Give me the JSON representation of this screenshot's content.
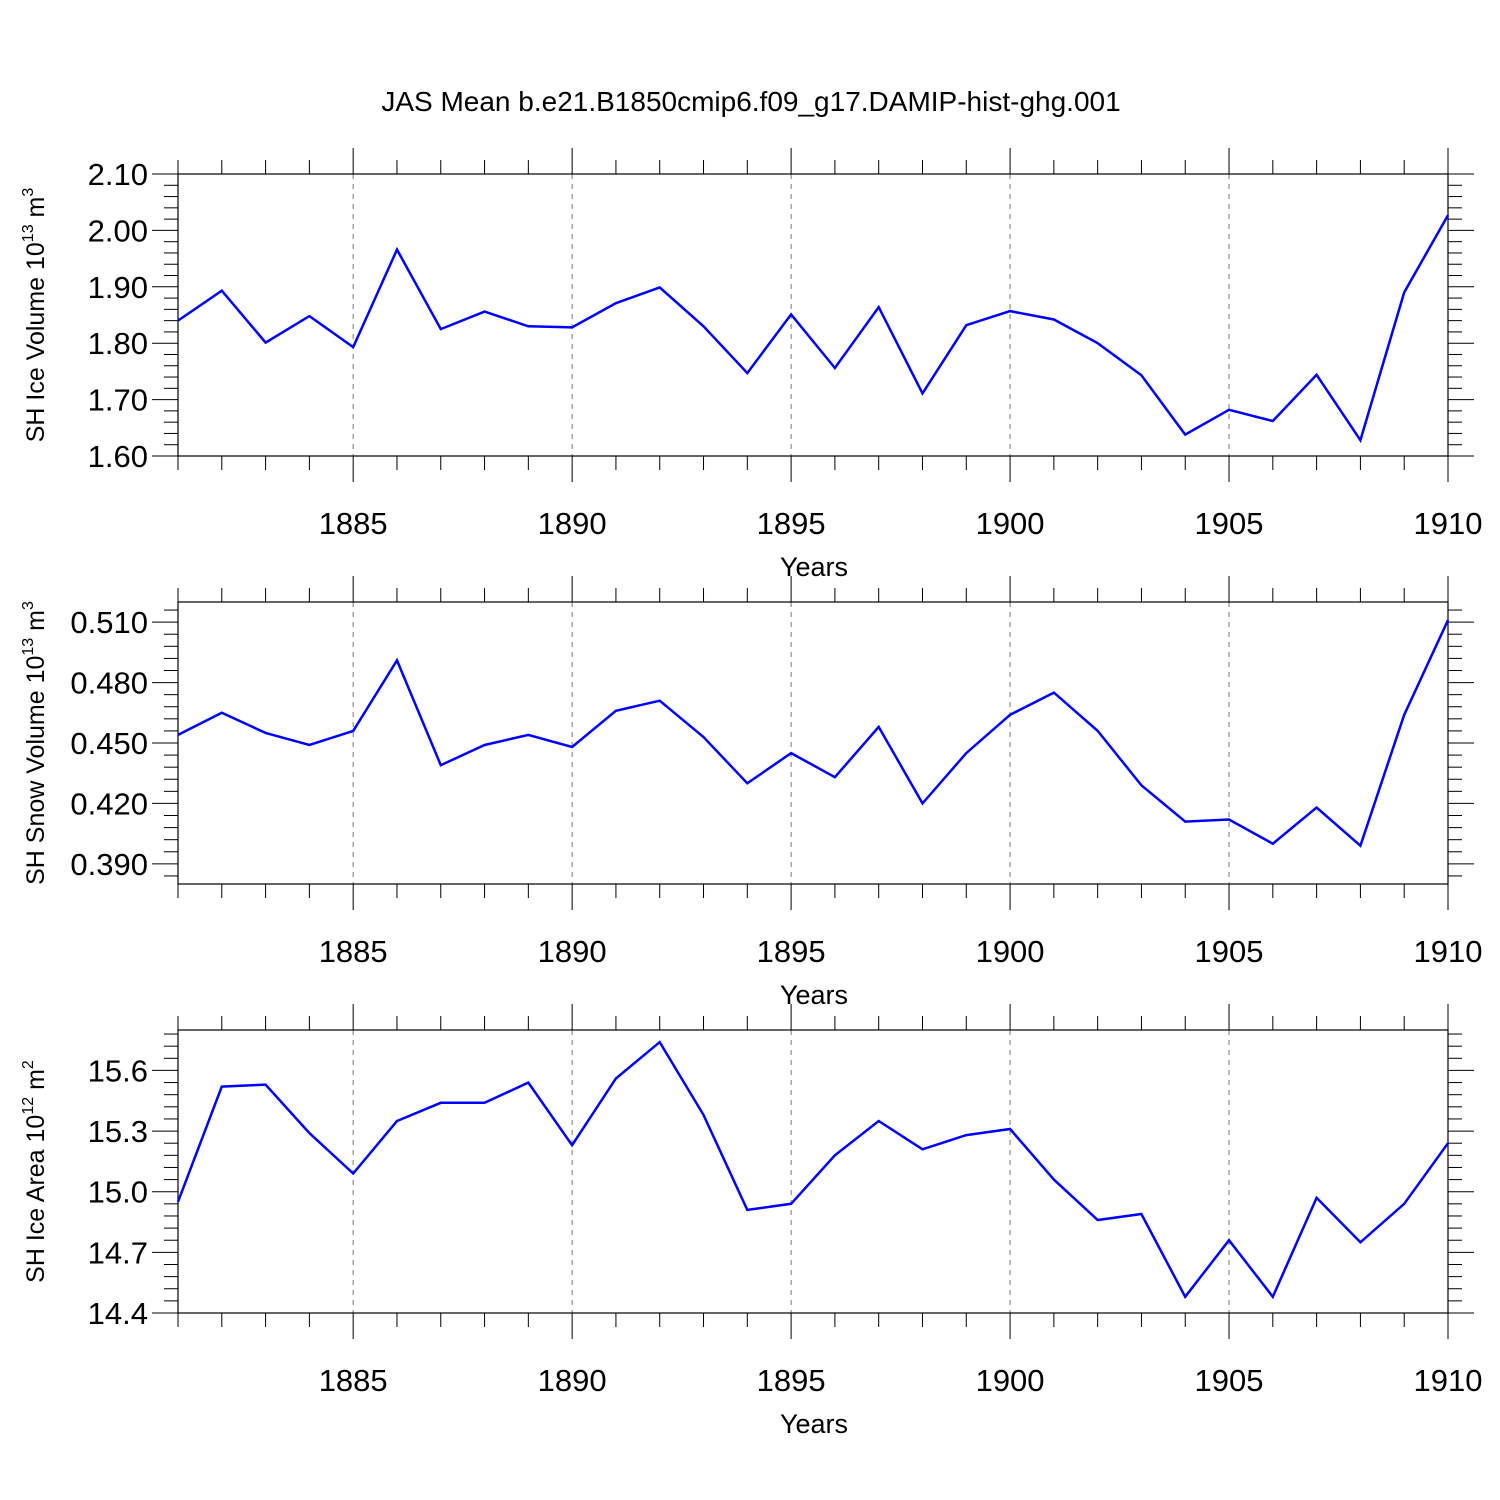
{
  "figure": {
    "title": "JAS Mean b.e21.B1850cmip6.f09_g17.DAMIP-hist-ghg.001"
  },
  "chart_data": [
    {
      "type": "line",
      "title": "JAS Mean b.e21.B1850cmip6.f09_g17.DAMIP-hist-ghg.001",
      "xlabel": "Years",
      "ylabel": "SH Ice Volume 10",
      "ylabel_exp": "13",
      "ylabel_unit": "m",
      "ylabel_unit_exp": "3",
      "xlim": [
        1881,
        1910
      ],
      "ylim": [
        1.6,
        2.1
      ],
      "x_ticks": [
        1885,
        1890,
        1895,
        1900,
        1905,
        1910
      ],
      "y_ticks": [
        1.6,
        1.7,
        1.8,
        1.9,
        2.0,
        2.1
      ],
      "y_tick_decimals": 2,
      "x_grid": true,
      "line_color": "#0000ff",
      "x": [
        1881,
        1882,
        1883,
        1884,
        1885,
        1886,
        1887,
        1888,
        1889,
        1890,
        1891,
        1892,
        1893,
        1894,
        1895,
        1896,
        1897,
        1898,
        1899,
        1900,
        1901,
        1902,
        1903,
        1904,
        1905,
        1906,
        1907,
        1908,
        1909,
        1910
      ],
      "values": [
        1.84,
        1.893,
        1.801,
        1.848,
        1.793,
        1.966,
        1.825,
        1.856,
        1.83,
        1.828,
        1.871,
        1.899,
        1.83,
        1.747,
        1.851,
        1.756,
        1.864,
        1.711,
        1.832,
        1.857,
        1.842,
        1.8,
        1.743,
        1.638,
        1.682,
        1.662,
        1.744,
        1.628,
        1.89,
        2.027
      ]
    },
    {
      "type": "line",
      "xlabel": "Years",
      "ylabel": "SH Snow Volume 10",
      "ylabel_exp": "13",
      "ylabel_unit": "m",
      "ylabel_unit_exp": "3",
      "xlim": [
        1881,
        1910
      ],
      "ylim": [
        0.38,
        0.52
      ],
      "x_ticks": [
        1885,
        1890,
        1895,
        1900,
        1905,
        1910
      ],
      "y_ticks": [
        0.39,
        0.42,
        0.45,
        0.48,
        0.51
      ],
      "y_tick_decimals": 3,
      "x_grid": true,
      "line_color": "#0000ff",
      "x": [
        1881,
        1882,
        1883,
        1884,
        1885,
        1886,
        1887,
        1888,
        1889,
        1890,
        1891,
        1892,
        1893,
        1894,
        1895,
        1896,
        1897,
        1898,
        1899,
        1900,
        1901,
        1902,
        1903,
        1904,
        1905,
        1906,
        1907,
        1908,
        1909,
        1910
      ],
      "values": [
        0.454,
        0.465,
        0.455,
        0.449,
        0.456,
        0.491,
        0.439,
        0.449,
        0.454,
        0.448,
        0.466,
        0.471,
        0.453,
        0.43,
        0.445,
        0.433,
        0.458,
        0.42,
        0.445,
        0.464,
        0.475,
        0.456,
        0.429,
        0.411,
        0.412,
        0.4,
        0.418,
        0.399,
        0.464,
        0.511
      ]
    },
    {
      "type": "line",
      "xlabel": "Years",
      "ylabel": "SH Ice Area 10",
      "ylabel_exp": "12",
      "ylabel_unit": "m",
      "ylabel_unit_exp": "2",
      "xlim": [
        1881,
        1910
      ],
      "ylim": [
        14.4,
        15.8
      ],
      "x_ticks": [
        1885,
        1890,
        1895,
        1900,
        1905,
        1910
      ],
      "y_ticks": [
        14.4,
        14.7,
        15.0,
        15.3,
        15.6
      ],
      "y_tick_decimals": 1,
      "x_grid": true,
      "line_color": "#0000ff",
      "x": [
        1881,
        1882,
        1883,
        1884,
        1885,
        1886,
        1887,
        1888,
        1889,
        1890,
        1891,
        1892,
        1893,
        1894,
        1895,
        1896,
        1897,
        1898,
        1899,
        1900,
        1901,
        1902,
        1903,
        1904,
        1905,
        1906,
        1907,
        1908,
        1909,
        1910
      ],
      "values": [
        14.95,
        15.52,
        15.53,
        15.29,
        15.09,
        15.35,
        15.44,
        15.44,
        15.54,
        15.23,
        15.56,
        15.74,
        15.38,
        14.91,
        14.94,
        15.18,
        15.35,
        15.21,
        15.28,
        15.31,
        15.06,
        14.86,
        14.89,
        14.48,
        14.76,
        14.48,
        14.97,
        14.75,
        14.94,
        15.24
      ]
    }
  ]
}
